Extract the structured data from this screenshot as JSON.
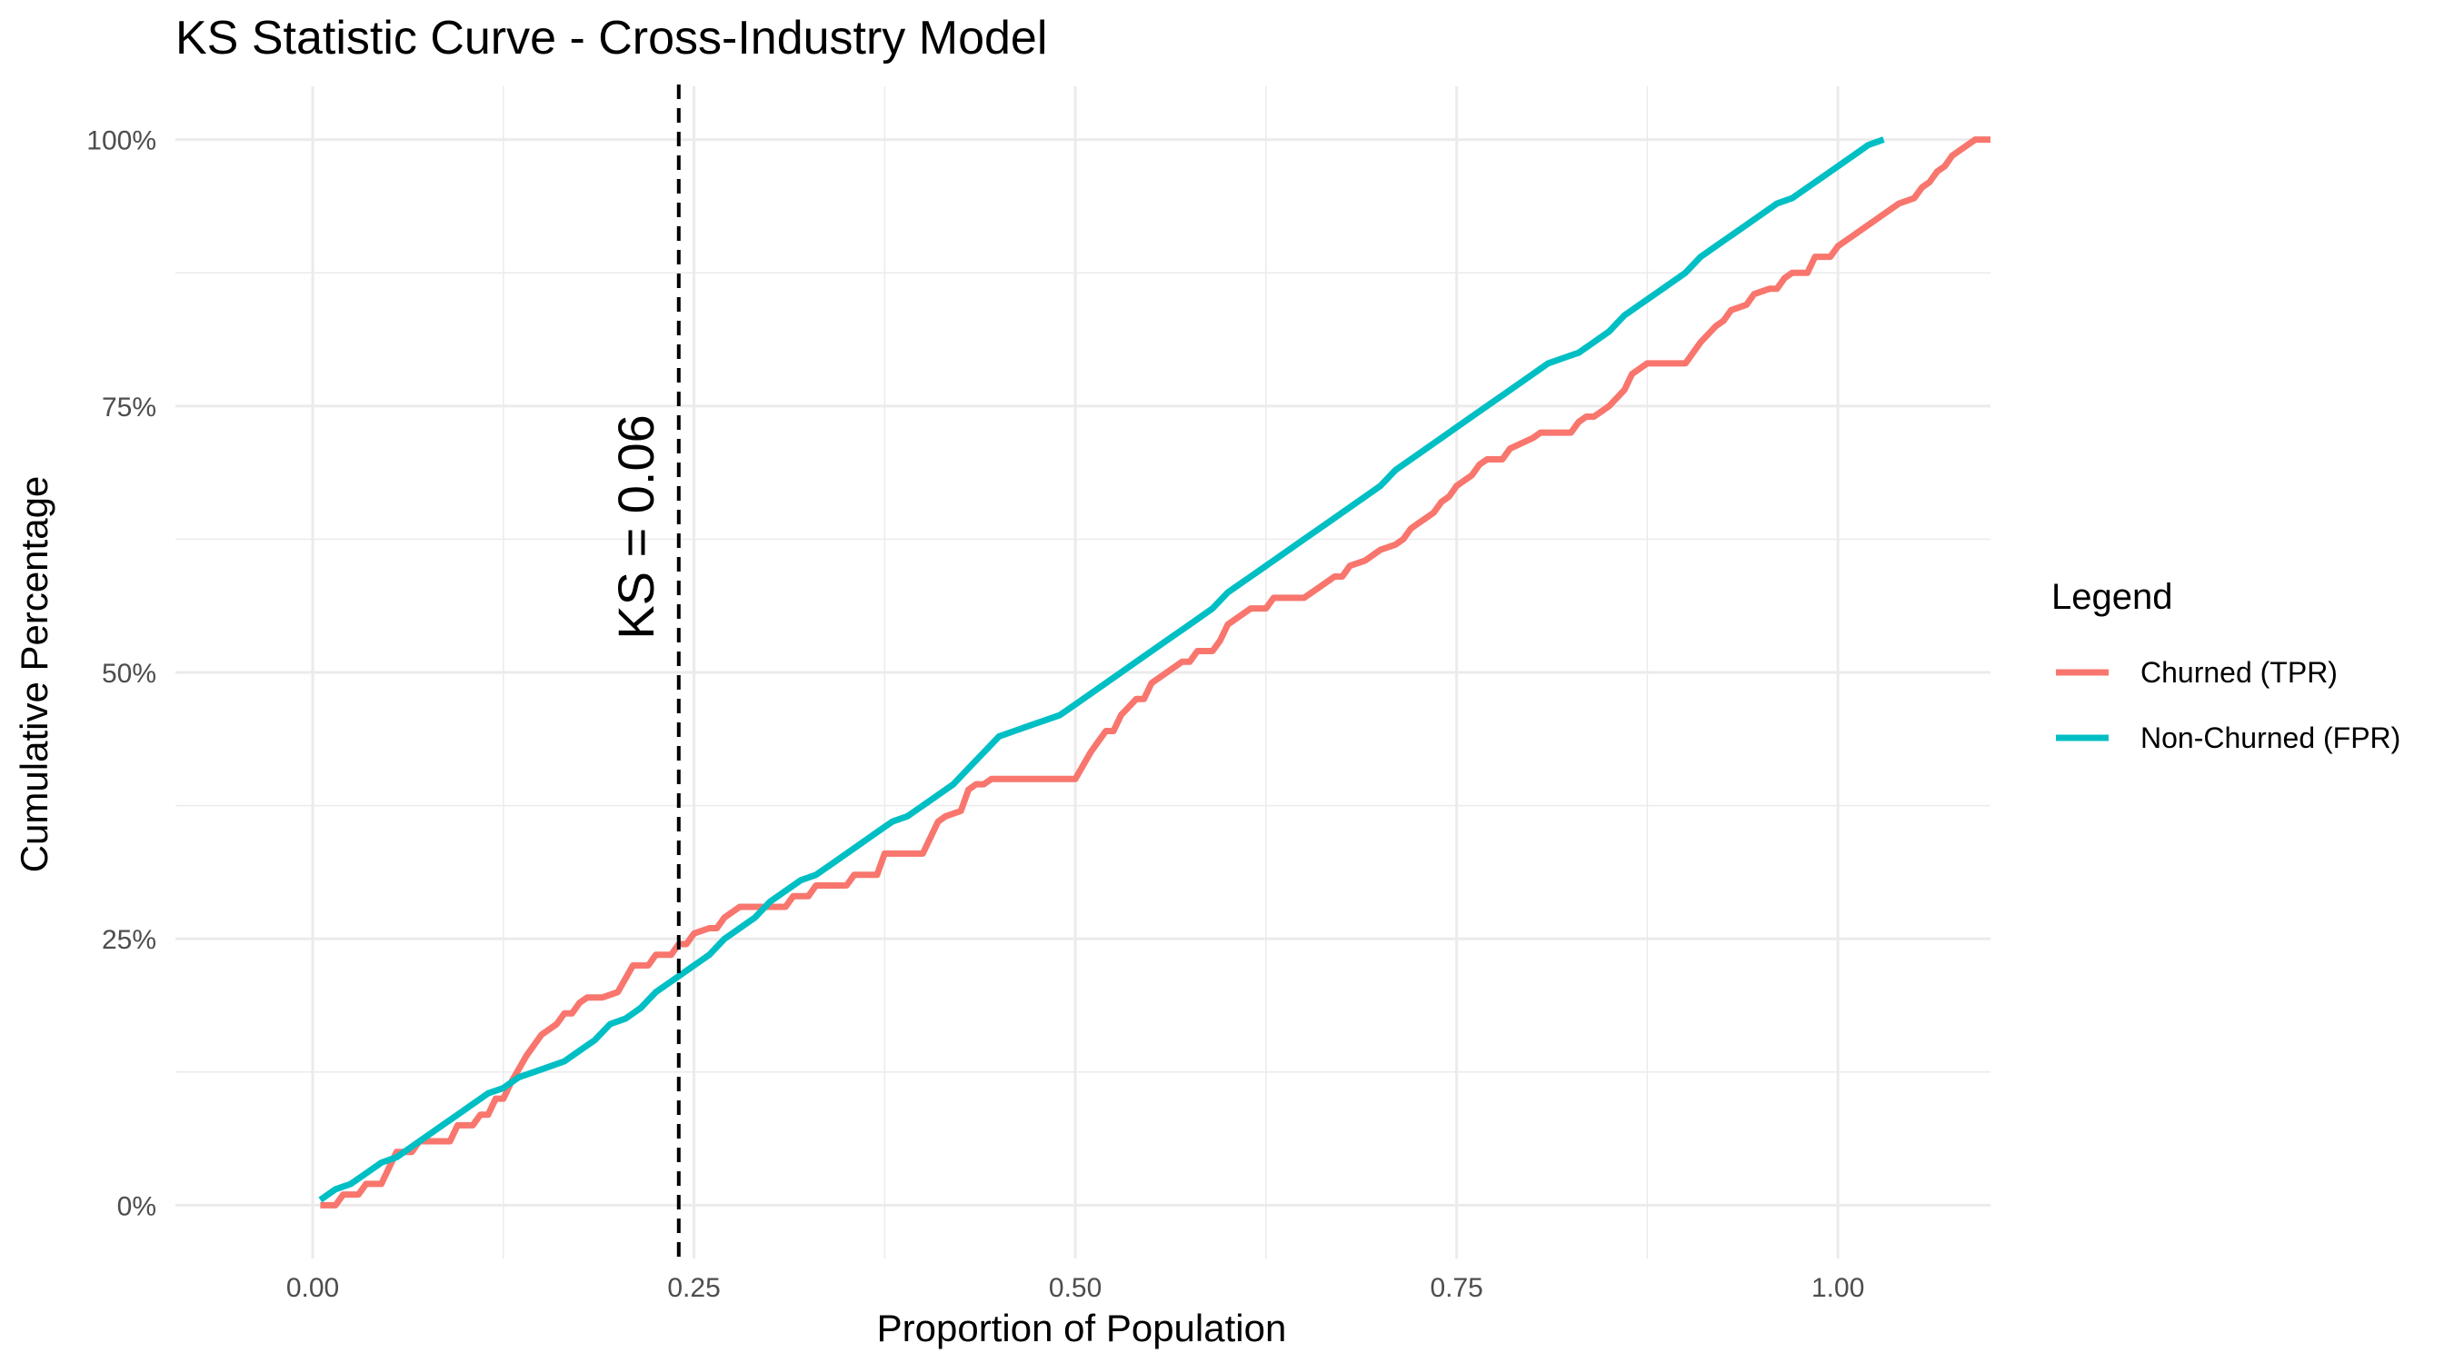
{
  "chart_data": {
    "type": "line",
    "title": "KS Statistic Curve - Cross-Industry Model",
    "xlabel": "Proportion of Population",
    "ylabel": "Cumulative Percentage",
    "xlim": [
      -0.09,
      1.1
    ],
    "ylim": [
      -0.05,
      1.05
    ],
    "x_ticks": [
      0.0,
      0.25,
      0.5,
      0.75,
      1.0
    ],
    "x_tick_labels": [
      "0.00",
      "0.25",
      "0.50",
      "0.75",
      "1.00"
    ],
    "y_ticks": [
      0.0,
      0.25,
      0.5,
      0.75,
      1.0
    ],
    "y_tick_labels": [
      "0%",
      "25%",
      "50%",
      "75%",
      "100%"
    ],
    "grid": true,
    "legend": {
      "title": "Legend",
      "position": "right"
    },
    "ks_line": {
      "x": 0.24,
      "label": "KS = 0.06"
    },
    "colors": {
      "churned": "#F8766D",
      "non_churned": "#00BFC4"
    },
    "series": [
      {
        "name": "Churned (TPR)",
        "color": "#F8766D",
        "points": [
          [
            0.005,
            0.0
          ],
          [
            0.015,
            0.0
          ],
          [
            0.02,
            0.01
          ],
          [
            0.03,
            0.01
          ],
          [
            0.035,
            0.02
          ],
          [
            0.045,
            0.02
          ],
          [
            0.055,
            0.05
          ],
          [
            0.065,
            0.05
          ],
          [
            0.07,
            0.06
          ],
          [
            0.09,
            0.06
          ],
          [
            0.095,
            0.075
          ],
          [
            0.105,
            0.075
          ],
          [
            0.11,
            0.085
          ],
          [
            0.115,
            0.085
          ],
          [
            0.12,
            0.1
          ],
          [
            0.125,
            0.1
          ],
          [
            0.13,
            0.115
          ],
          [
            0.14,
            0.14
          ],
          [
            0.15,
            0.16
          ],
          [
            0.16,
            0.17
          ],
          [
            0.165,
            0.18
          ],
          [
            0.17,
            0.18
          ],
          [
            0.175,
            0.19
          ],
          [
            0.18,
            0.195
          ],
          [
            0.19,
            0.195
          ],
          [
            0.2,
            0.2
          ],
          [
            0.21,
            0.225
          ],
          [
            0.22,
            0.225
          ],
          [
            0.225,
            0.235
          ],
          [
            0.235,
            0.235
          ],
          [
            0.24,
            0.245
          ],
          [
            0.245,
            0.245
          ],
          [
            0.25,
            0.255
          ],
          [
            0.26,
            0.26
          ],
          [
            0.265,
            0.26
          ],
          [
            0.27,
            0.27
          ],
          [
            0.28,
            0.28
          ],
          [
            0.31,
            0.28
          ],
          [
            0.315,
            0.29
          ],
          [
            0.325,
            0.29
          ],
          [
            0.33,
            0.3
          ],
          [
            0.35,
            0.3
          ],
          [
            0.355,
            0.31
          ],
          [
            0.37,
            0.31
          ],
          [
            0.375,
            0.33
          ],
          [
            0.4,
            0.33
          ],
          [
            0.41,
            0.36
          ],
          [
            0.415,
            0.365
          ],
          [
            0.425,
            0.37
          ],
          [
            0.43,
            0.39
          ],
          [
            0.435,
            0.395
          ],
          [
            0.44,
            0.395
          ],
          [
            0.445,
            0.4
          ],
          [
            0.5,
            0.4
          ],
          [
            0.51,
            0.425
          ],
          [
            0.515,
            0.435
          ],
          [
            0.52,
            0.445
          ],
          [
            0.525,
            0.445
          ],
          [
            0.53,
            0.46
          ],
          [
            0.54,
            0.475
          ],
          [
            0.545,
            0.475
          ],
          [
            0.55,
            0.49
          ],
          [
            0.555,
            0.495
          ],
          [
            0.56,
            0.5
          ],
          [
            0.57,
            0.51
          ],
          [
            0.575,
            0.51
          ],
          [
            0.58,
            0.52
          ],
          [
            0.59,
            0.52
          ],
          [
            0.595,
            0.53
          ],
          [
            0.6,
            0.545
          ],
          [
            0.61,
            0.555
          ],
          [
            0.615,
            0.56
          ],
          [
            0.625,
            0.56
          ],
          [
            0.63,
            0.57
          ],
          [
            0.65,
            0.57
          ],
          [
            0.66,
            0.58
          ],
          [
            0.67,
            0.59
          ],
          [
            0.675,
            0.59
          ],
          [
            0.68,
            0.6
          ],
          [
            0.69,
            0.605
          ],
          [
            0.7,
            0.615
          ],
          [
            0.71,
            0.62
          ],
          [
            0.715,
            0.625
          ],
          [
            0.72,
            0.635
          ],
          [
            0.725,
            0.64
          ],
          [
            0.73,
            0.645
          ],
          [
            0.735,
            0.65
          ],
          [
            0.74,
            0.66
          ],
          [
            0.745,
            0.665
          ],
          [
            0.75,
            0.675
          ],
          [
            0.755,
            0.68
          ],
          [
            0.76,
            0.685
          ],
          [
            0.765,
            0.695
          ],
          [
            0.77,
            0.7
          ],
          [
            0.78,
            0.7
          ],
          [
            0.785,
            0.71
          ],
          [
            0.8,
            0.72
          ],
          [
            0.805,
            0.725
          ],
          [
            0.825,
            0.725
          ],
          [
            0.83,
            0.735
          ],
          [
            0.835,
            0.74
          ],
          [
            0.84,
            0.74
          ],
          [
            0.845,
            0.745
          ],
          [
            0.85,
            0.75
          ],
          [
            0.86,
            0.765
          ],
          [
            0.865,
            0.78
          ],
          [
            0.87,
            0.785
          ],
          [
            0.875,
            0.79
          ],
          [
            0.9,
            0.79
          ],
          [
            0.91,
            0.81
          ],
          [
            0.92,
            0.825
          ],
          [
            0.925,
            0.83
          ],
          [
            0.93,
            0.84
          ],
          [
            0.94,
            0.845
          ],
          [
            0.945,
            0.855
          ],
          [
            0.955,
            0.86
          ],
          [
            0.96,
            0.86
          ],
          [
            0.965,
            0.87
          ],
          [
            0.97,
            0.875
          ],
          [
            0.98,
            0.875
          ],
          [
            0.985,
            0.89
          ],
          [
            0.995,
            0.89
          ],
          [
            1.0,
            0.9
          ],
          [
            1.005,
            0.905
          ],
          [
            1.01,
            0.91
          ],
          [
            1.015,
            0.915
          ],
          [
            1.02,
            0.92
          ],
          [
            1.03,
            0.93
          ],
          [
            1.035,
            0.935
          ],
          [
            1.04,
            0.94
          ],
          [
            1.05,
            0.945
          ],
          [
            1.055,
            0.955
          ],
          [
            1.06,
            0.96
          ],
          [
            1.065,
            0.97
          ],
          [
            1.07,
            0.975
          ],
          [
            1.075,
            0.985
          ],
          [
            1.08,
            0.99
          ],
          [
            1.085,
            0.995
          ],
          [
            1.09,
            1.0
          ],
          [
            1.1,
            1.0
          ]
        ]
      },
      {
        "name": "Non-Churned (FPR)",
        "color": "#00BFC4",
        "points": [
          [
            0.005,
            0.005
          ],
          [
            0.015,
            0.015
          ],
          [
            0.025,
            0.02
          ],
          [
            0.035,
            0.03
          ],
          [
            0.045,
            0.04
          ],
          [
            0.055,
            0.045
          ],
          [
            0.065,
            0.055
          ],
          [
            0.075,
            0.065
          ],
          [
            0.085,
            0.075
          ],
          [
            0.095,
            0.085
          ],
          [
            0.105,
            0.095
          ],
          [
            0.115,
            0.105
          ],
          [
            0.125,
            0.11
          ],
          [
            0.135,
            0.12
          ],
          [
            0.145,
            0.125
          ],
          [
            0.155,
            0.13
          ],
          [
            0.165,
            0.135
          ],
          [
            0.175,
            0.145
          ],
          [
            0.185,
            0.155
          ],
          [
            0.195,
            0.17
          ],
          [
            0.205,
            0.175
          ],
          [
            0.215,
            0.185
          ],
          [
            0.225,
            0.2
          ],
          [
            0.235,
            0.21
          ],
          [
            0.245,
            0.22
          ],
          [
            0.25,
            0.225
          ],
          [
            0.26,
            0.235
          ],
          [
            0.27,
            0.25
          ],
          [
            0.28,
            0.26
          ],
          [
            0.29,
            0.27
          ],
          [
            0.3,
            0.285
          ],
          [
            0.31,
            0.295
          ],
          [
            0.32,
            0.305
          ],
          [
            0.33,
            0.31
          ],
          [
            0.34,
            0.32
          ],
          [
            0.35,
            0.33
          ],
          [
            0.36,
            0.34
          ],
          [
            0.37,
            0.35
          ],
          [
            0.38,
            0.36
          ],
          [
            0.39,
            0.365
          ],
          [
            0.4,
            0.375
          ],
          [
            0.41,
            0.385
          ],
          [
            0.42,
            0.395
          ],
          [
            0.43,
            0.41
          ],
          [
            0.44,
            0.425
          ],
          [
            0.45,
            0.44
          ],
          [
            0.46,
            0.445
          ],
          [
            0.47,
            0.45
          ],
          [
            0.48,
            0.455
          ],
          [
            0.49,
            0.46
          ],
          [
            0.5,
            0.47
          ],
          [
            0.51,
            0.48
          ],
          [
            0.52,
            0.49
          ],
          [
            0.53,
            0.5
          ],
          [
            0.54,
            0.51
          ],
          [
            0.55,
            0.52
          ],
          [
            0.56,
            0.53
          ],
          [
            0.57,
            0.54
          ],
          [
            0.58,
            0.55
          ],
          [
            0.59,
            0.56
          ],
          [
            0.6,
            0.575
          ],
          [
            0.61,
            0.585
          ],
          [
            0.62,
            0.595
          ],
          [
            0.63,
            0.605
          ],
          [
            0.64,
            0.615
          ],
          [
            0.65,
            0.625
          ],
          [
            0.66,
            0.635
          ],
          [
            0.67,
            0.645
          ],
          [
            0.68,
            0.655
          ],
          [
            0.69,
            0.665
          ],
          [
            0.7,
            0.675
          ],
          [
            0.71,
            0.69
          ],
          [
            0.72,
            0.7
          ],
          [
            0.73,
            0.71
          ],
          [
            0.74,
            0.72
          ],
          [
            0.75,
            0.73
          ],
          [
            0.76,
            0.74
          ],
          [
            0.77,
            0.75
          ],
          [
            0.78,
            0.76
          ],
          [
            0.79,
            0.77
          ],
          [
            0.8,
            0.78
          ],
          [
            0.81,
            0.79
          ],
          [
            0.82,
            0.795
          ],
          [
            0.83,
            0.8
          ],
          [
            0.84,
            0.81
          ],
          [
            0.85,
            0.82
          ],
          [
            0.86,
            0.835
          ],
          [
            0.87,
            0.845
          ],
          [
            0.88,
            0.855
          ],
          [
            0.89,
            0.865
          ],
          [
            0.9,
            0.875
          ],
          [
            0.91,
            0.89
          ],
          [
            0.92,
            0.9
          ],
          [
            0.93,
            0.91
          ],
          [
            0.94,
            0.92
          ],
          [
            0.95,
            0.93
          ],
          [
            0.96,
            0.94
          ],
          [
            0.97,
            0.945
          ],
          [
            0.98,
            0.955
          ],
          [
            0.99,
            0.965
          ],
          [
            1.0,
            0.975
          ],
          [
            1.01,
            0.985
          ],
          [
            1.02,
            0.995
          ],
          [
            1.03,
            1.0
          ]
        ]
      }
    ]
  }
}
